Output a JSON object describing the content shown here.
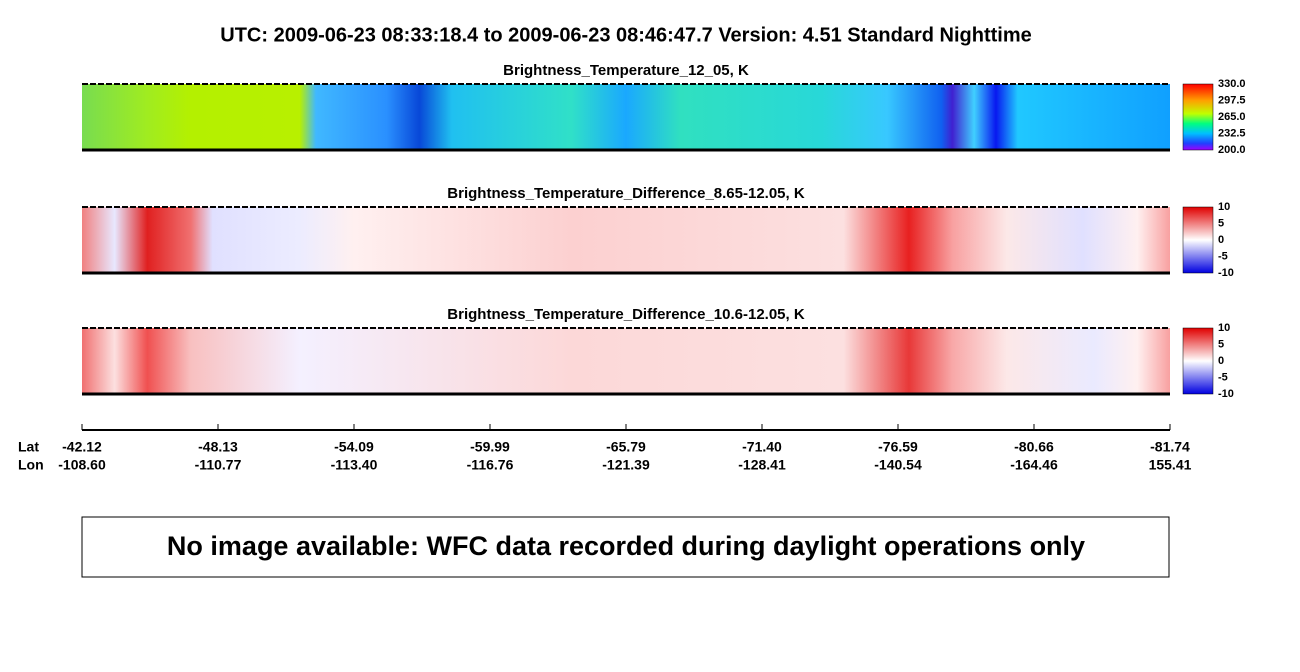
{
  "header": {
    "title": "UTC:  2009-06-23   08:33:18.4  to  2009-06-23   08:46:47.7    Version: 4.51  Standard Nighttime"
  },
  "panels": [
    {
      "title": "Brightness_Temperature_12_05, K",
      "colorbar_labels": [
        "330.0",
        "297.5",
        "265.0",
        "232.5",
        "200.0"
      ]
    },
    {
      "title": "Brightness_Temperature_Difference_8.65-12.05, K",
      "colorbar_labels": [
        "10",
        "5",
        "0",
        "-5",
        "-10"
      ]
    },
    {
      "title": "Brightness_Temperature_Difference_10.6-12.05, K",
      "colorbar_labels": [
        "10",
        "5",
        "0",
        "-5",
        "-10"
      ]
    }
  ],
  "axis": {
    "lat_title": "Lat",
    "lon_title": "Lon",
    "lat": [
      "-42.12",
      "-48.13",
      "-54.09",
      "-59.99",
      "-65.79",
      "-71.40",
      "-76.59",
      "-80.66",
      "-81.74"
    ],
    "lon": [
      "-108.60",
      "-110.77",
      "-113.40",
      "-116.76",
      "-121.39",
      "-128.41",
      "-140.54",
      "-164.46",
      "155.41"
    ]
  },
  "message": "No image available: WFC data recorded during daylight operations only"
}
